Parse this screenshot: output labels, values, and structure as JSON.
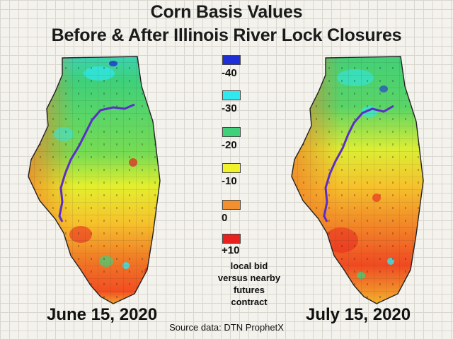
{
  "title_line1": "Corn Basis Values",
  "title_line2": "Before & After Illinois River Lock Closures",
  "legend": {
    "items": [
      {
        "label": "-40",
        "color": "#1f2fd8"
      },
      {
        "label": "-30",
        "color": "#2fe8f0"
      },
      {
        "label": "-20",
        "color": "#3fd07a"
      },
      {
        "label": "-10",
        "color": "#f2f22a"
      },
      {
        "label": "0",
        "color": "#f29030"
      },
      {
        "label": "+10",
        "color": "#e82020"
      }
    ],
    "note": "local bid versus nearby futures contract"
  },
  "maps": [
    {
      "date": "June 15, 2020",
      "region": "Illinois"
    },
    {
      "date": "July 15, 2020",
      "region": "Illinois"
    }
  ],
  "source": "Source data: DTN ProphetX"
}
